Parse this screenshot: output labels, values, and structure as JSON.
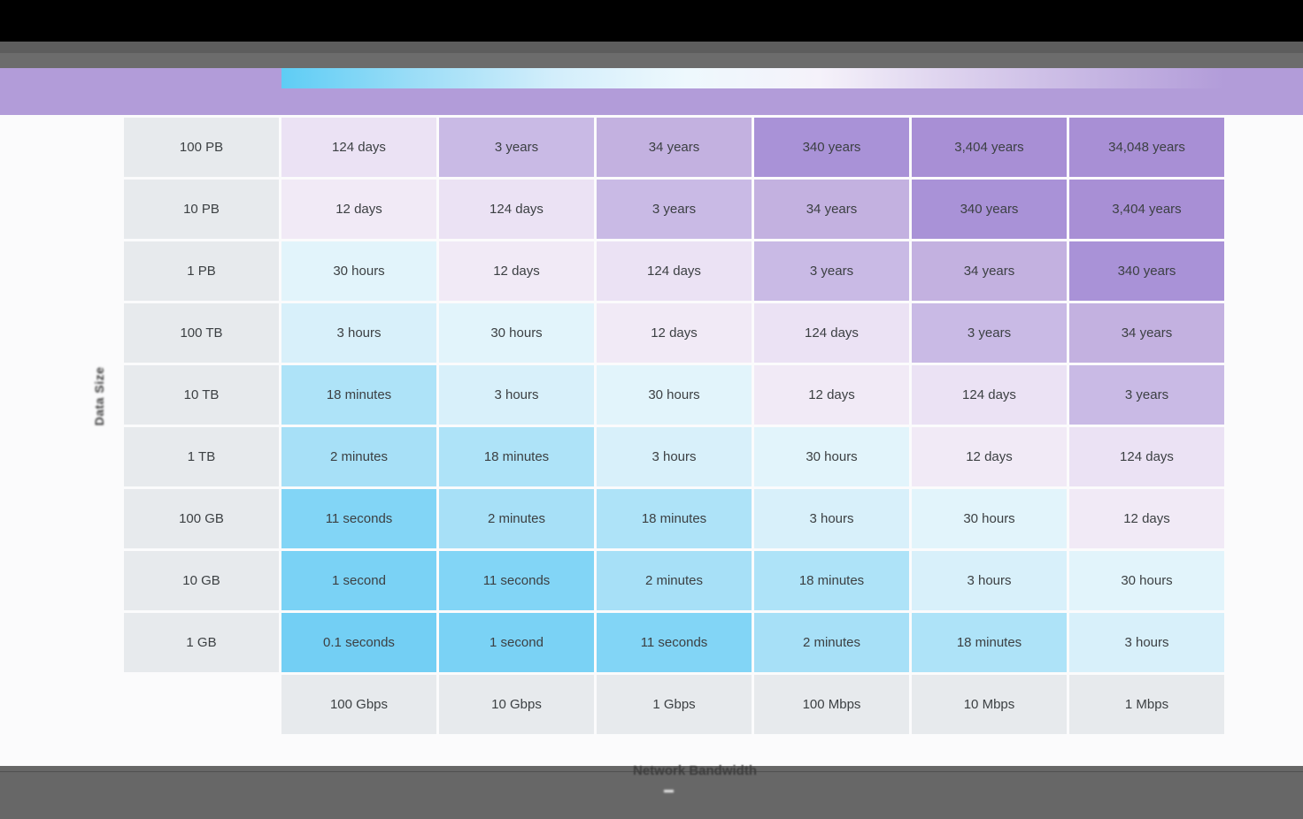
{
  "chrome": {
    "top_bar_color": "#000000",
    "tab_strip_color": "#5d5d5d",
    "toolbar_color": "#6c6c6c",
    "bottom_bar_color": "#676767"
  },
  "legend": {
    "band_color": "#b29cd9",
    "gradient_stops": [
      "#5ecdf5",
      "#9bddf7",
      "#d3eefb",
      "#eef8fd",
      "#f5f2fa",
      "#ddd2ee",
      "#c6b6e3",
      "#b29cd9"
    ]
  },
  "chart_data": {
    "type": "heatmap",
    "title": "",
    "y_axis_label": "Data Size",
    "x_axis_label": "Network Bandwidth",
    "rows": [
      "100 PB",
      "10 PB",
      "1 PB",
      "100 TB",
      "10 TB",
      "1 TB",
      "100 GB",
      "10 GB",
      "1 GB"
    ],
    "columns": [
      "100 Gbps",
      "10 Gbps",
      "1 Gbps",
      "100 Mbps",
      "10 Mbps",
      "1 Mbps"
    ],
    "cells": [
      [
        "124 days",
        "3 years",
        "34 years",
        "340 years",
        "3,404 years",
        "34,048 years"
      ],
      [
        "12 days",
        "124 days",
        "3 years",
        "34 years",
        "340 years",
        "3,404 years"
      ],
      [
        "30 hours",
        "12 days",
        "124 days",
        "3 years",
        "34 years",
        "340 years"
      ],
      [
        "3 hours",
        "30 hours",
        "12 days",
        "124 days",
        "3 years",
        "34 years"
      ],
      [
        "18 minutes",
        "3 hours",
        "30 hours",
        "12 days",
        "124 days",
        "3 years"
      ],
      [
        "2 minutes",
        "18 minutes",
        "3 hours",
        "30 hours",
        "12 days",
        "124 days"
      ],
      [
        "11 seconds",
        "2 minutes",
        "18 minutes",
        "3 hours",
        "30 hours",
        "12 days"
      ],
      [
        "1 second",
        "11 seconds",
        "2 minutes",
        "18 minutes",
        "3 hours",
        "30 hours"
      ],
      [
        "0.1 seconds",
        "1 second",
        "11 seconds",
        "2 minutes",
        "18 minutes",
        "3 hours"
      ]
    ],
    "palette": {
      "0.1 seconds": "#73cff4",
      "1 second": "#7ad2f5",
      "11 seconds": "#82d5f6",
      "2 minutes": "#a7e0f7",
      "18 minutes": "#aee3f8",
      "3 hours": "#d8f0fa",
      "30 hours": "#e2f4fb",
      "12 days": "#f1eaf6",
      "124 days": "#ebe2f4",
      "3 years": "#c9bae5",
      "34 years": "#c3b1e0",
      "340 years": "#a992d7",
      "3,404 years": "#a88fd5",
      "34,048 years": "#a88fd5"
    },
    "header_bg": "#e7eaed",
    "text_color": "#3c4043",
    "legend_position": "top",
    "grid": "off"
  }
}
